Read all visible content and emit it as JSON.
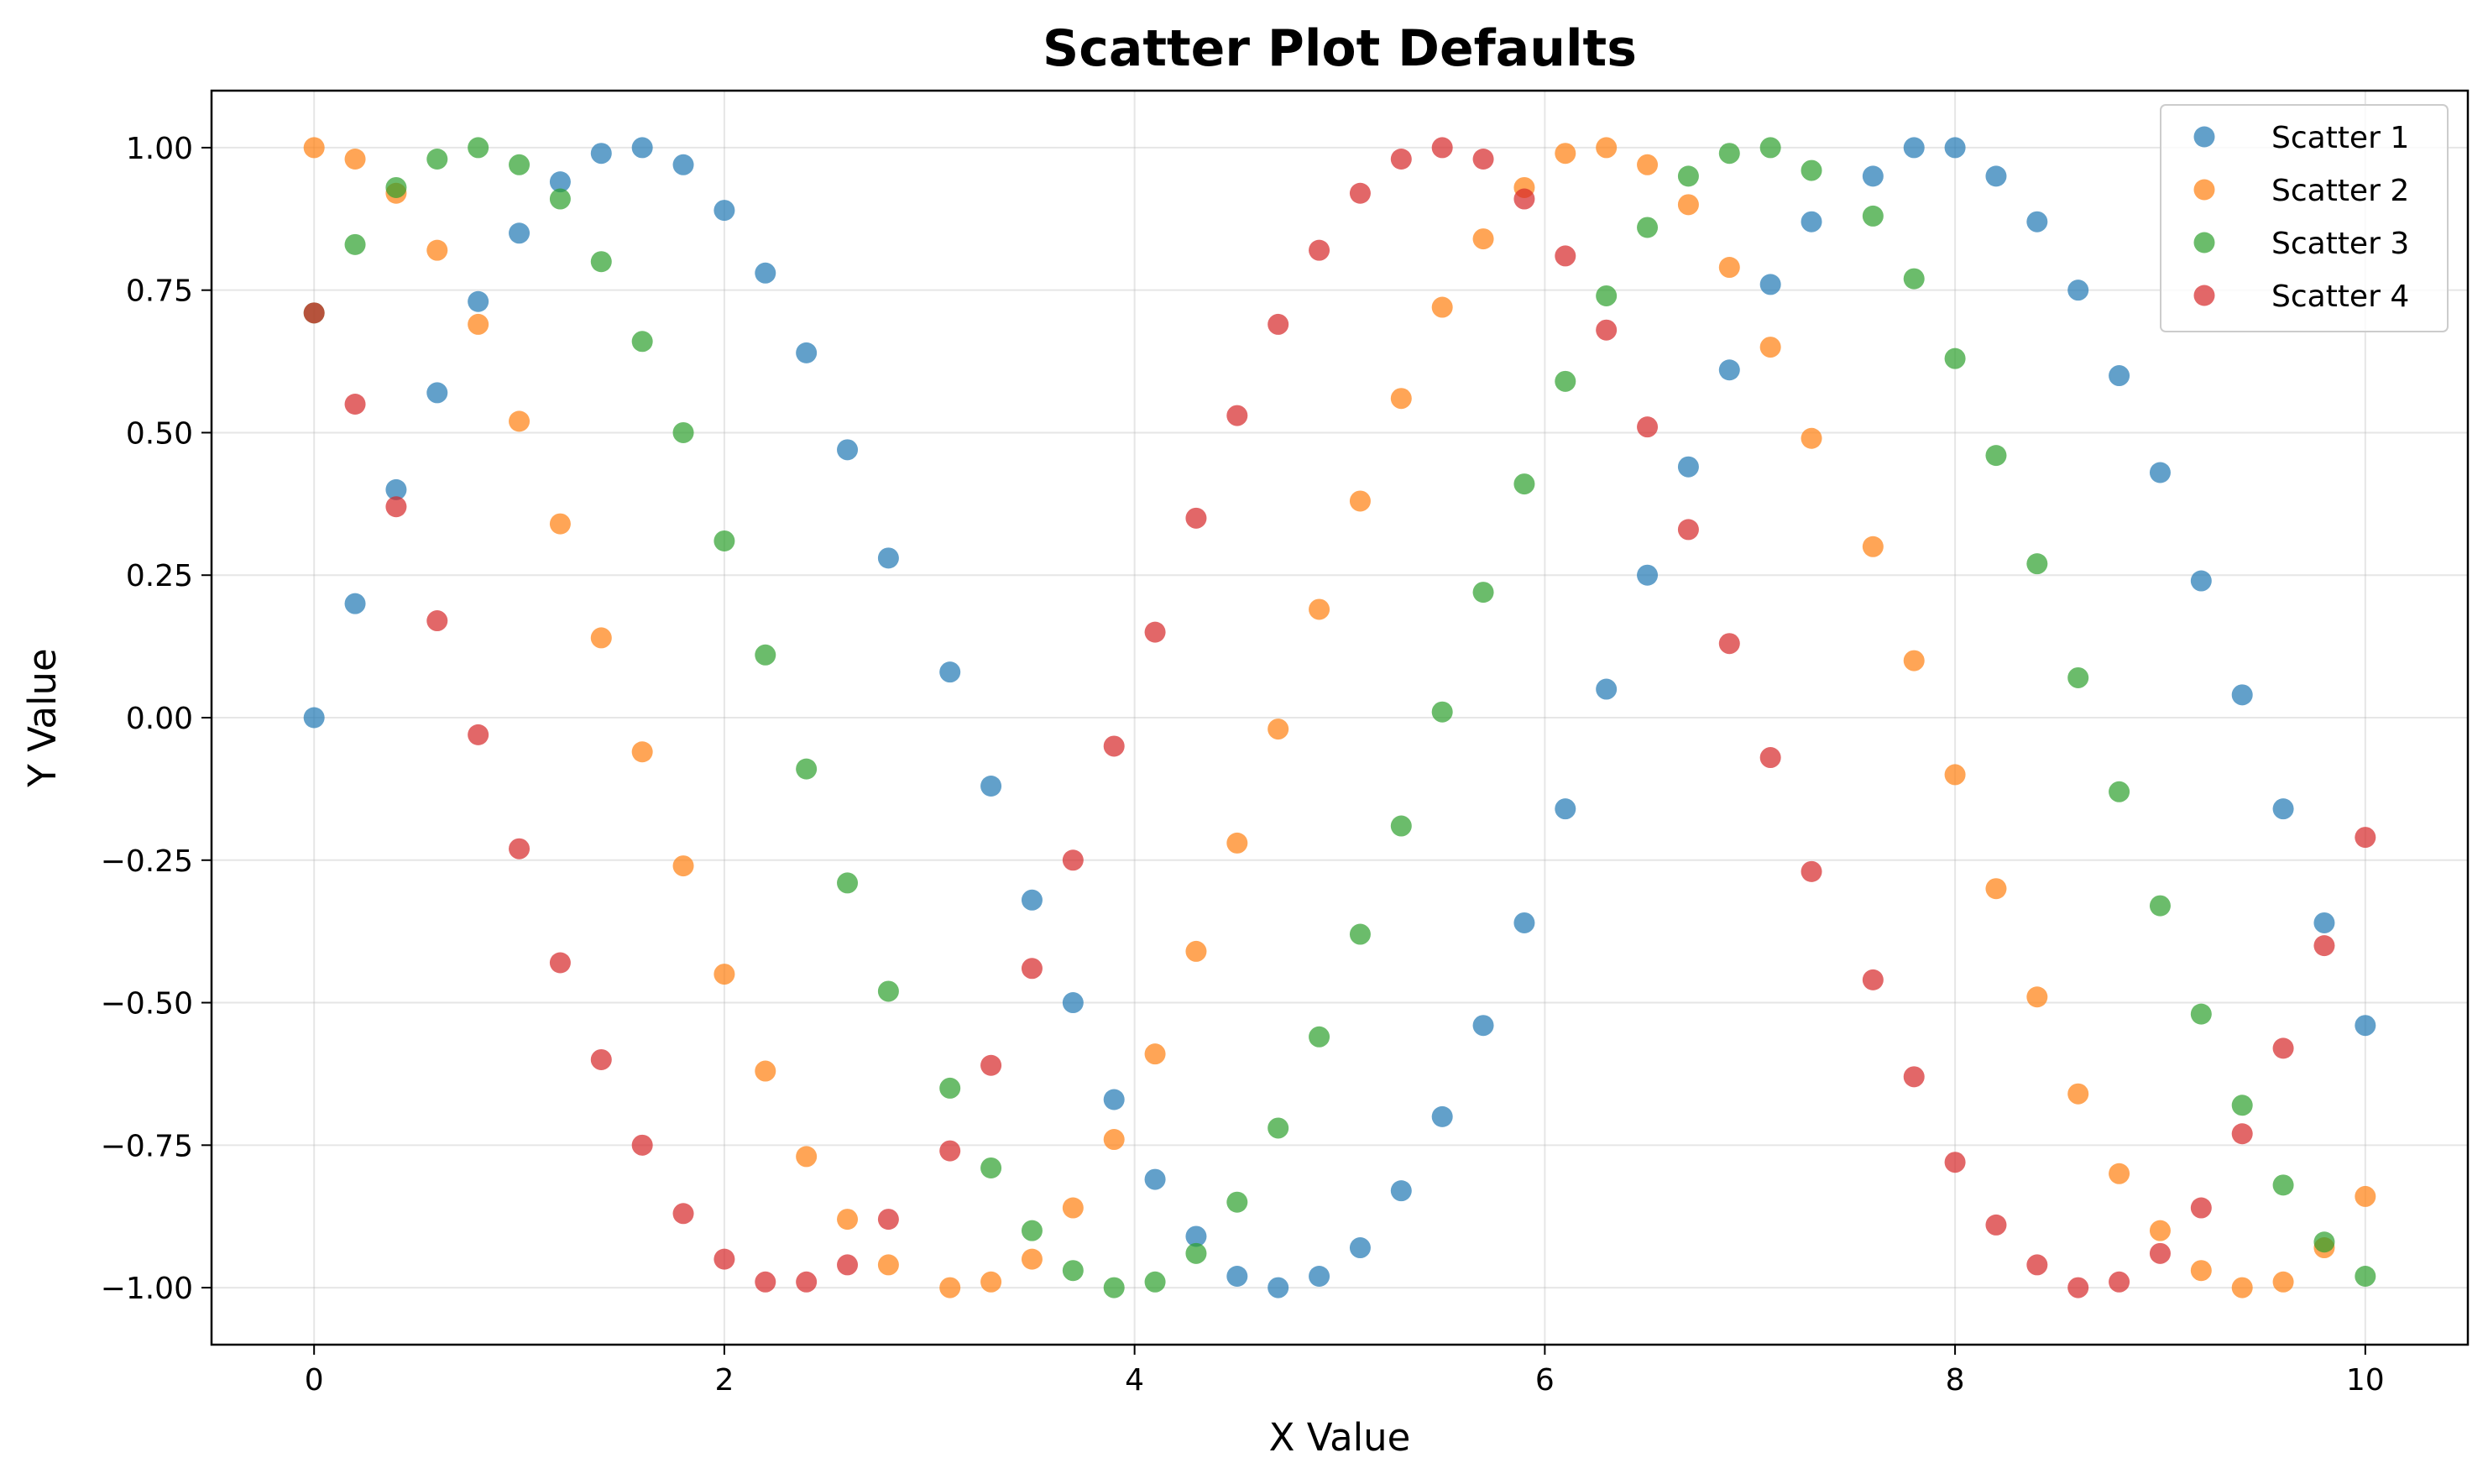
{
  "chart_data": {
    "type": "scatter",
    "title": "Scatter Plot Defaults",
    "xlabel": "X Value",
    "ylabel": "Y Value",
    "xlim": [
      -0.5,
      10.5
    ],
    "ylim": [
      -1.1,
      1.1
    ],
    "xticks": [
      0,
      2,
      4,
      6,
      8,
      10
    ],
    "xtick_labels": [
      "0",
      "2",
      "4",
      "6",
      "8",
      "10"
    ],
    "yticks": [
      -1.0,
      -0.75,
      -0.5,
      -0.25,
      0.0,
      0.25,
      0.5,
      0.75,
      1.0
    ],
    "ytick_labels": [
      "−1.00",
      "−0.75",
      "−0.50",
      "−0.25",
      "0.00",
      "0.25",
      "0.50",
      "0.75",
      "1.00"
    ],
    "grid": true,
    "legend_position": "top-right",
    "x": [
      0.0,
      0.2,
      0.4,
      0.6,
      0.8,
      1.0,
      1.2,
      1.4,
      1.6,
      1.8,
      2.0,
      2.2,
      2.4,
      2.6,
      2.8,
      3.1,
      3.3,
      3.5,
      3.7,
      3.9,
      4.1,
      4.3,
      4.5,
      4.7,
      4.9,
      5.1,
      5.3,
      5.5,
      5.7,
      5.9,
      6.1,
      6.3,
      6.5,
      6.7,
      6.9,
      7.1,
      7.3,
      7.6,
      7.8,
      8.0,
      8.2,
      8.4,
      8.6,
      8.8,
      9.0,
      9.2,
      9.4,
      9.6,
      9.8,
      10.0
    ],
    "series": [
      {
        "name": "Scatter 1",
        "color": "#1f77b4",
        "y": [
          0.0,
          0.2,
          0.4,
          0.57,
          0.73,
          0.85,
          0.94,
          0.99,
          1.0,
          0.97,
          0.89,
          0.78,
          0.64,
          0.47,
          0.28,
          0.08,
          -0.12,
          -0.32,
          -0.5,
          -0.67,
          -0.81,
          -0.91,
          -0.98,
          -1.0,
          -0.98,
          -0.93,
          -0.83,
          -0.7,
          -0.54,
          -0.36,
          -0.16,
          0.05,
          0.25,
          0.44,
          0.61,
          0.76,
          0.87,
          0.95,
          1.0,
          1.0,
          0.95,
          0.87,
          0.75,
          0.6,
          0.43,
          0.24,
          0.04,
          -0.16,
          -0.36,
          -0.54
        ]
      },
      {
        "name": "Scatter 2",
        "color": "#ff7f0e",
        "y": [
          1.0,
          0.98,
          0.92,
          0.82,
          0.69,
          0.52,
          0.34,
          0.14,
          -0.06,
          -0.26,
          -0.45,
          -0.62,
          -0.77,
          -0.88,
          -0.96,
          -1.0,
          -0.99,
          -0.95,
          -0.86,
          -0.74,
          -0.59,
          -0.41,
          -0.22,
          -0.02,
          0.19,
          0.38,
          0.56,
          0.72,
          0.84,
          0.93,
          0.99,
          1.0,
          0.97,
          0.9,
          0.79,
          0.65,
          0.49,
          0.3,
          0.1,
          -0.1,
          -0.3,
          -0.49,
          -0.66,
          -0.8,
          -0.9,
          -0.97,
          -1.0,
          -0.99,
          -0.93,
          -0.84
        ]
      },
      {
        "name": "Scatter 3",
        "color": "#2ca02c",
        "y": [
          0.71,
          0.83,
          0.93,
          0.98,
          1.0,
          0.97,
          0.91,
          0.8,
          0.66,
          0.5,
          0.31,
          0.11,
          -0.09,
          -0.29,
          -0.48,
          -0.65,
          -0.79,
          -0.9,
          -0.97,
          -1.0,
          -0.99,
          -0.94,
          -0.85,
          -0.72,
          -0.56,
          -0.38,
          -0.19,
          0.01,
          0.22,
          0.41,
          0.59,
          0.74,
          0.86,
          0.95,
          0.99,
          1.0,
          0.96,
          0.88,
          0.77,
          0.63,
          0.46,
          0.27,
          0.07,
          -0.13,
          -0.33,
          -0.52,
          -0.68,
          -0.82,
          -0.92,
          -0.98
        ]
      },
      {
        "name": "Scatter 4",
        "color": "#d62728",
        "y": [
          0.71,
          0.55,
          0.37,
          0.17,
          -0.03,
          -0.23,
          -0.43,
          -0.6,
          -0.75,
          -0.87,
          -0.95,
          -0.99,
          -0.99,
          -0.96,
          -0.88,
          -0.76,
          -0.61,
          -0.44,
          -0.25,
          -0.05,
          0.15,
          0.35,
          0.53,
          0.69,
          0.82,
          0.92,
          0.98,
          1.0,
          0.98,
          0.91,
          0.81,
          0.68,
          0.51,
          0.33,
          0.13,
          -0.07,
          -0.27,
          -0.46,
          -0.63,
          -0.78,
          -0.89,
          -0.96,
          -1.0,
          -0.99,
          -0.94,
          -0.86,
          -0.73,
          -0.58,
          -0.4,
          -0.21
        ]
      }
    ]
  }
}
